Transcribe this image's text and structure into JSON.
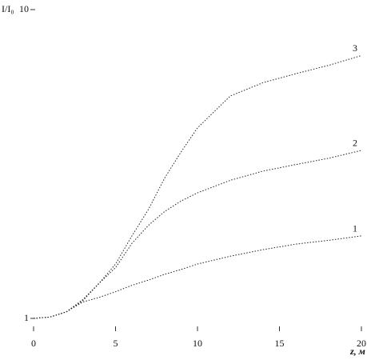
{
  "chart_data": {
    "type": "line",
    "y_label": "I/I₀",
    "x_label": "z, м",
    "x": [
      0,
      1,
      2,
      3,
      4,
      5,
      6,
      7,
      8,
      9,
      10,
      12,
      14,
      16,
      18,
      20
    ],
    "series": [
      {
        "name": "1",
        "color": "#222",
        "values": [
          1,
          1.01,
          1.05,
          1.13,
          1.17,
          1.22,
          1.28,
          1.33,
          1.39,
          1.44,
          1.5,
          1.59,
          1.67,
          1.74,
          1.79,
          1.85
        ]
      },
      {
        "name": "2",
        "color": "#222",
        "values": [
          1,
          1.01,
          1.05,
          1.14,
          1.3,
          1.46,
          1.75,
          2.0,
          2.22,
          2.4,
          2.55,
          2.8,
          3.0,
          3.15,
          3.3,
          3.5
        ]
      },
      {
        "name": "3",
        "color": "#222",
        "values": [
          1,
          1.01,
          1.05,
          1.15,
          1.3,
          1.5,
          1.85,
          2.25,
          2.85,
          3.46,
          4.14,
          5.25,
          5.8,
          6.2,
          6.6,
          7.1
        ]
      }
    ],
    "xlim": [
      0,
      20
    ],
    "ylim": [
      1,
      10
    ],
    "xticks": [
      0,
      5,
      10,
      15,
      20
    ],
    "yticks": [
      1,
      10
    ],
    "log_y": true
  }
}
